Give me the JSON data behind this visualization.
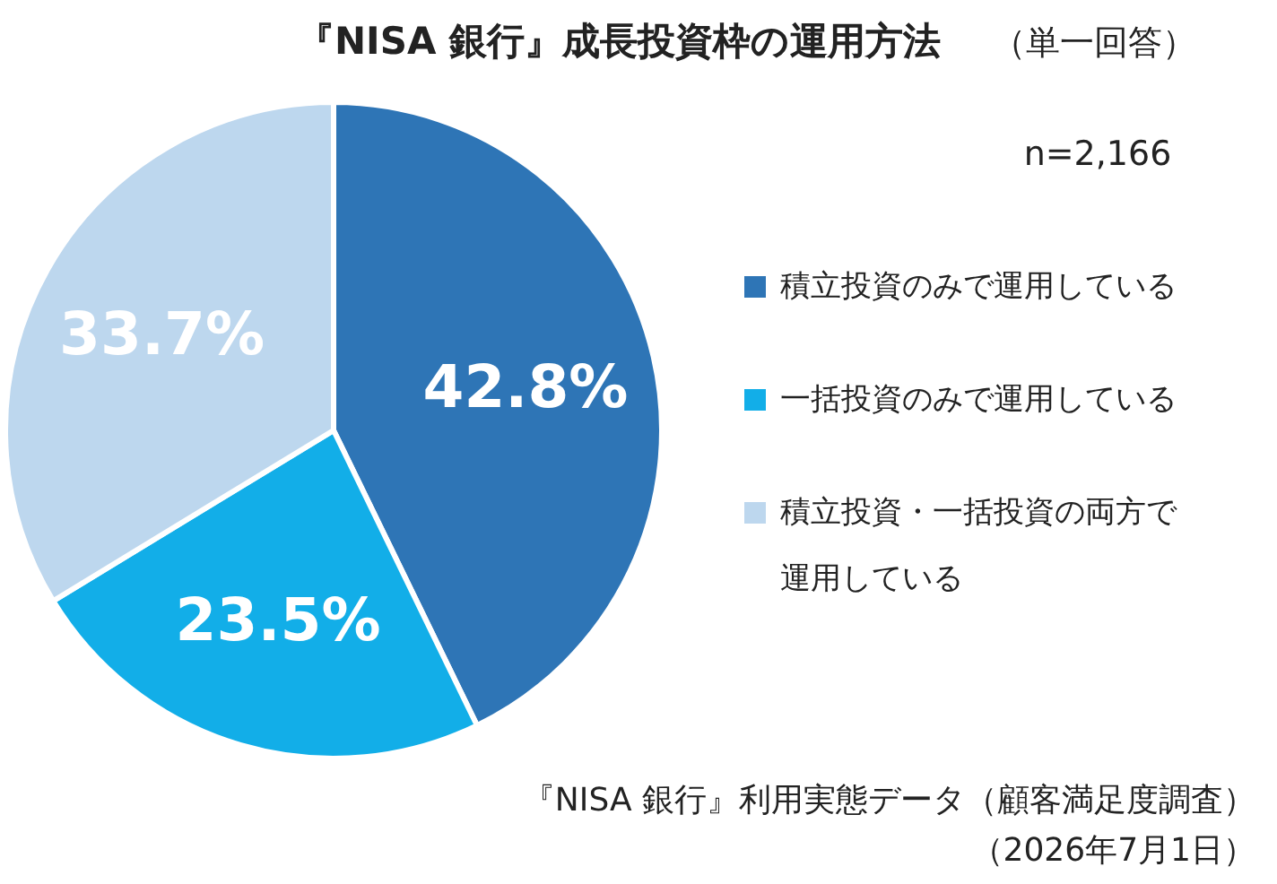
{
  "chart_data": {
    "type": "pie",
    "title": "『NISA 銀行』成長投資枠の運用方法",
    "subtitle": "（単一回答）",
    "categories": [
      "積立投資のみで運用している",
      "一括投資のみで運用している",
      "積立投資・一括投資の両方で運用している"
    ],
    "values": [
      42.8,
      23.5,
      33.7
    ],
    "colors": [
      "#2e75b6",
      "#12aee8",
      "#bdd7ee"
    ],
    "value_labels": [
      "42.8%",
      "23.5%",
      "33.7%"
    ],
    "legend": "right",
    "annotations": [
      "n=2,166",
      "『NISA 銀行』利用実態データ（顧客満足度調査）",
      "（2026年7月1日）"
    ]
  }
}
